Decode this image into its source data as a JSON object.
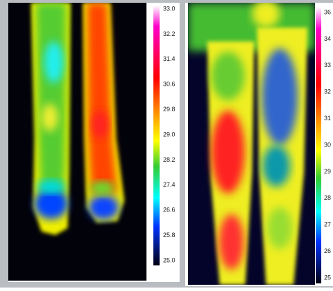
{
  "left_panel": {
    "scale_labels": [
      "33.0",
      "32.2",
      "31.4",
      "30.6",
      "29.8",
      "29.0",
      "28.2",
      "27.4",
      "26.6",
      "25.8",
      "25.0"
    ]
  },
  "right_panel": {
    "scale_labels": [
      "36",
      "34",
      "33",
      "32",
      "31",
      "30",
      "29",
      "28",
      "27",
      "26",
      "25"
    ]
  }
}
